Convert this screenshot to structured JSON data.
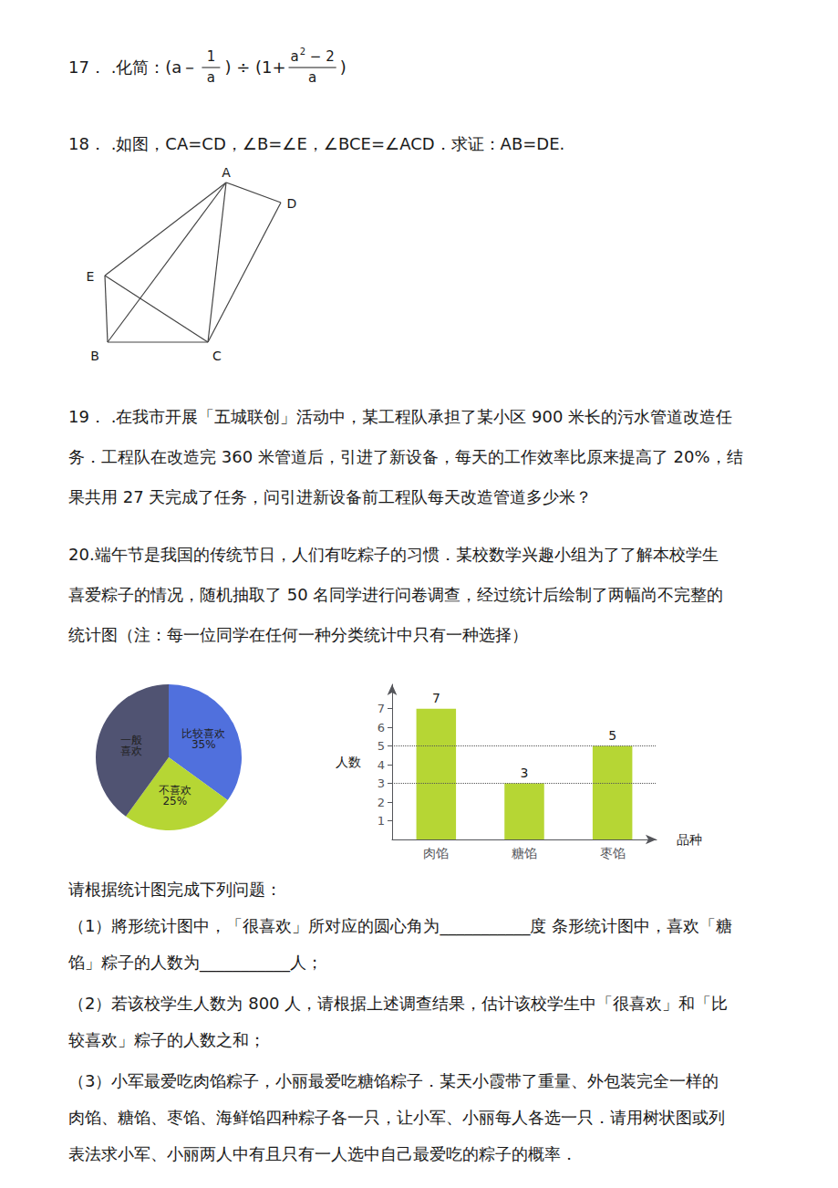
{
  "chart_data": [
    {
      "type": "pie",
      "categories": [
        "比较喜欢",
        "不喜欢",
        "一般\n喜欢"
      ],
      "values": [
        35,
        25,
        40
      ],
      "value_labels": [
        "35%",
        "25%",
        null
      ],
      "data_labels": true,
      "annotations": [
        "17． .化简：(a－",
        "1",
        "a",
        ") ÷ (1+",
        "a",
        "2",
        " − 2",
        "a",
        ")",
        "18． .如图，CA=CD，∠B=∠E，∠BCE=∠ACD．求证：AB=DE.",
        "A",
        "B",
        "C",
        "D",
        "E",
        "19． .在我市开展「五城联创」活动中，某工程队承担了某小区 900 米长的污水管道改造任",
        "务．工程队在改造完 360 米管道后，引进了新设备，每天的工作效率比原来提高了 20%，结",
        "果共用 27 天完成了任务，问引进新设备前工程队每天改造管道多少米？",
        "20.端午节是我国的传统节日，人们有吃粽子的习惯．某校数学兴趣小组为了了解本校学生",
        "喜爱粽子的情况，随机抽取了 50 名同学进行问卷调查，经过统计后绘制了两幅尚不完整的",
        "统计图（注：每一位同学在任何一种分类统计中只有一种选择）",
        "请根据统计图完成下列问题：",
        "（1）將形统计图中，「很喜欢」所对应的圆心角为___________度 条形统计图中，喜欢「糖",
        "馅」粽子的人数为___________人；",
        "（2）若该校学生人数为 800 人，请根据上述调查结果，估计该校学生中「很喜欢」和「比",
        "较喜欢」粽子的人数之和；",
        "（3）小军最爱吃肉馅粽子，小丽最爱吃糖馅粽子．某天小霞带了重量、外包装完全一样的",
        "肉馅、糖馅、枣馅、海鲜馅四种粽子各一只，让小军、小丽每人各选一只．请用树状图或列",
        "表法求小军、小丽两人中有且只有一人选中自己最爱吃的粽子的概率．"
      ]
    },
    {
      "type": "bar",
      "categories": [
        "肉馅",
        "糖馅",
        "枣馅"
      ],
      "values": [
        7,
        3,
        5
      ],
      "xlabel": "品种",
      "ylabel": "人数",
      "ylim": [
        0,
        8.3
      ],
      "yticks": [
        1,
        2,
        3,
        4,
        5,
        6,
        7
      ],
      "reference_lines": [
        3,
        5
      ],
      "data_labels": true,
      "grid": false
    }
  ]
}
